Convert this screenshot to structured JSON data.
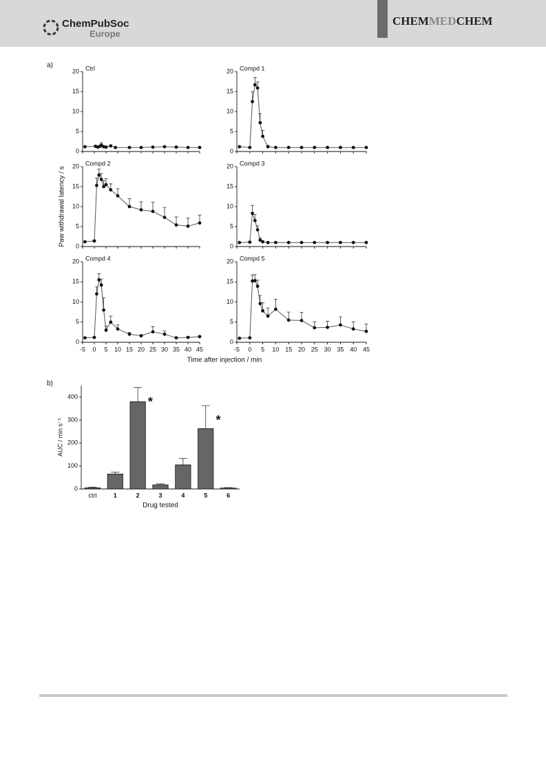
{
  "header": {
    "publisher": "ChemPubSoc",
    "publisher_region": "Europe",
    "journal_parts": [
      "CHEM",
      "MED",
      "CHEM"
    ]
  },
  "figure_a": {
    "panel_label": "a)",
    "y_label": "Paw withdrawal latency / s",
    "x_label": "Time after injection / min"
  },
  "figure_b": {
    "panel_label": "b)"
  },
  "chart_data": [
    {
      "type": "line",
      "title": "Ctrl",
      "x": [
        -4,
        0.5,
        1.5,
        2.5,
        3,
        4,
        5,
        7,
        9,
        15,
        20,
        25,
        30,
        35,
        40,
        45
      ],
      "values": [
        1.2,
        1.3,
        1.1,
        1.3,
        1.6,
        1.2,
        1.1,
        1.4,
        1.0,
        1.0,
        1.0,
        1.1,
        1.2,
        1.1,
        1.0,
        1.0
      ],
      "errors": [
        0.1,
        0.2,
        0.2,
        0.3,
        0.6,
        0.2,
        0.2,
        0.2,
        0.1,
        0.1,
        0.1,
        0.1,
        0.1,
        0.1,
        0.1,
        0.1
      ],
      "xlim": [
        -5,
        45
      ],
      "xticks": [
        -5,
        0,
        5,
        10,
        15,
        20,
        25,
        30,
        35,
        40,
        45
      ],
      "ylim": [
        0,
        20
      ],
      "yticks": [
        0,
        5,
        10,
        15,
        20
      ],
      "color": "#111111"
    },
    {
      "type": "line",
      "title": "Compd 1",
      "x": [
        -4,
        0,
        1,
        2,
        3,
        4,
        5,
        7,
        10,
        15,
        20,
        25,
        30,
        35,
        40,
        45
      ],
      "values": [
        1.2,
        1.0,
        12.5,
        16.7,
        15.9,
        7.2,
        3.8,
        1.2,
        1.0,
        1.0,
        1.0,
        1.0,
        1.0,
        1.0,
        1.0,
        1.0
      ],
      "errors": [
        0.1,
        0.1,
        2.5,
        1.8,
        1.5,
        2.3,
        1.5,
        0.3,
        0.1,
        0.1,
        0.1,
        0.1,
        0.1,
        0.1,
        0.1,
        0.1
      ],
      "xlim": [
        -5,
        45
      ],
      "xticks": [
        -5,
        0,
        5,
        10,
        15,
        20,
        25,
        30,
        35,
        40,
        45
      ],
      "ylim": [
        0,
        20
      ],
      "yticks": [
        0,
        5,
        10,
        15,
        20
      ],
      "color": "#111111"
    },
    {
      "type": "line",
      "title": "Compd 2",
      "x": [
        -4,
        0,
        1,
        2,
        3,
        4,
        5,
        7,
        10,
        15,
        20,
        25,
        30,
        35,
        40,
        45
      ],
      "values": [
        1.2,
        1.4,
        15.3,
        17.9,
        16.8,
        15.0,
        15.5,
        14.2,
        12.7,
        10.0,
        9.2,
        8.8,
        7.3,
        5.4,
        5.1,
        5.9
      ],
      "errors": [
        0.1,
        0.2,
        1.8,
        1.5,
        1.5,
        1.5,
        1.5,
        1.5,
        1.8,
        2.0,
        2.0,
        2.3,
        2.5,
        2.0,
        2.0,
        2.0
      ],
      "xlim": [
        -5,
        45
      ],
      "xticks": [
        -5,
        0,
        5,
        10,
        15,
        20,
        25,
        30,
        35,
        40,
        45
      ],
      "ylim": [
        0,
        20
      ],
      "yticks": [
        0,
        5,
        10,
        15,
        20
      ],
      "color": "#111111"
    },
    {
      "type": "line",
      "title": "Compd 3",
      "x": [
        -4,
        0,
        1,
        2,
        3,
        4,
        5,
        7,
        10,
        15,
        20,
        25,
        30,
        35,
        40,
        45
      ],
      "values": [
        1.0,
        1.1,
        8.3,
        6.5,
        4.2,
        1.6,
        1.2,
        1.0,
        1.0,
        1.0,
        1.0,
        1.0,
        1.0,
        1.0,
        1.0,
        1.0
      ],
      "errors": [
        0.1,
        0.1,
        2.0,
        1.5,
        1.0,
        0.5,
        0.2,
        0.1,
        0.1,
        0.1,
        0.1,
        0.1,
        0.1,
        0.1,
        0.1,
        0.1
      ],
      "xlim": [
        -5,
        45
      ],
      "xticks": [
        -5,
        0,
        5,
        10,
        15,
        20,
        25,
        30,
        35,
        40,
        45
      ],
      "ylim": [
        0,
        20
      ],
      "yticks": [
        0,
        5,
        10,
        15,
        20
      ],
      "color": "#111111"
    },
    {
      "type": "line",
      "title": "Compd 4",
      "x": [
        -4,
        0,
        1,
        2,
        3,
        4,
        5,
        7,
        10,
        15,
        20,
        25,
        30,
        35,
        40,
        45
      ],
      "values": [
        1.1,
        1.2,
        12.0,
        15.5,
        14.2,
        8.0,
        3.0,
        5.0,
        3.3,
        2.0,
        1.6,
        2.6,
        2.0,
        1.1,
        1.2,
        1.4
      ],
      "errors": [
        0.1,
        0.1,
        1.8,
        1.5,
        1.5,
        3.0,
        1.0,
        1.5,
        1.0,
        0.4,
        0.3,
        1.3,
        0.8,
        0.2,
        0.2,
        0.2
      ],
      "xlim": [
        -5,
        45
      ],
      "xticks": [
        -5,
        0,
        5,
        10,
        15,
        20,
        25,
        30,
        35,
        40,
        45
      ],
      "ylim": [
        0,
        20
      ],
      "yticks": [
        0,
        5,
        10,
        15,
        20
      ],
      "color": "#111111"
    },
    {
      "type": "line",
      "title": "Compd 5",
      "x": [
        -4,
        0,
        1,
        2,
        3,
        4,
        5,
        7,
        10,
        15,
        20,
        25,
        30,
        35,
        40,
        45
      ],
      "values": [
        1.0,
        1.1,
        15.2,
        15.3,
        13.9,
        9.6,
        7.8,
        6.5,
        8.2,
        5.5,
        5.4,
        3.6,
        3.7,
        4.3,
        3.3,
        2.7
      ],
      "errors": [
        0.1,
        0.1,
        1.5,
        1.5,
        1.5,
        2.0,
        2.0,
        2.0,
        2.5,
        2.0,
        2.0,
        1.5,
        1.5,
        2.0,
        1.8,
        1.8
      ],
      "xlim": [
        -5,
        45
      ],
      "xticks": [
        -5,
        0,
        5,
        10,
        15,
        20,
        25,
        30,
        35,
        40,
        45
      ],
      "ylim": [
        0,
        20
      ],
      "yticks": [
        0,
        5,
        10,
        15,
        20
      ],
      "color": "#111111"
    },
    {
      "type": "bar",
      "y_label": "AUC / min s⁻¹",
      "x_label": "Drug tested",
      "categories": [
        "ctrl",
        "1",
        "2",
        "3",
        "4",
        "5",
        "6"
      ],
      "values": [
        5,
        65,
        380,
        18,
        105,
        263,
        4
      ],
      "errors": [
        3,
        8,
        62,
        4,
        28,
        100,
        2
      ],
      "annotations": [
        {
          "category": "2",
          "text": "*"
        },
        {
          "category": "5",
          "text": "*"
        }
      ],
      "ylim": [
        0,
        450
      ],
      "yticks": [
        0,
        100,
        200,
        300,
        400
      ],
      "color": "#666666"
    }
  ]
}
